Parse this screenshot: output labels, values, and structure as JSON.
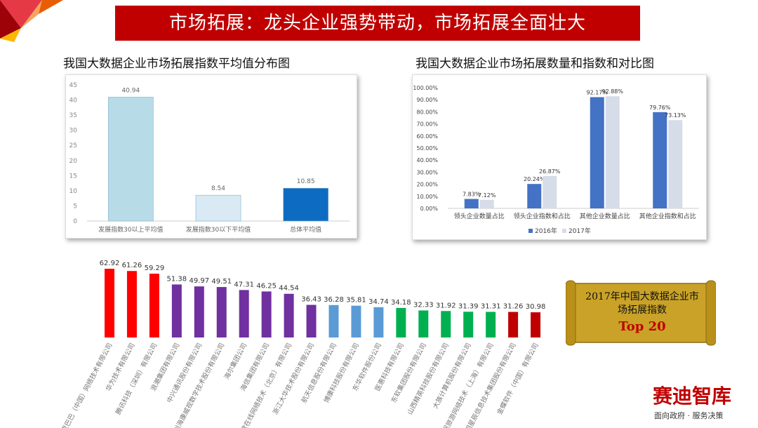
{
  "slide": {
    "title": "市场拓展：龙头企业强势带动，市场拓展全面壮大",
    "accent": "#c00000"
  },
  "chart_data": [
    {
      "type": "bar",
      "title": "我国大数据企业市场拓展指数平均值分布图",
      "categories": [
        "发展指数30以上平均值",
        "发展指数30以下平均值",
        "总体平均值"
      ],
      "values": [
        40.94,
        8.54,
        10.85
      ],
      "value_labels": [
        "40.94",
        "8.54",
        "10.85"
      ],
      "colors": [
        "#b8dbe8",
        "#d9eaf5",
        "#0e6bc2"
      ],
      "ylim": [
        0,
        45
      ],
      "yticks": [
        "0",
        "5",
        "10",
        "15",
        "20",
        "25",
        "30",
        "35",
        "40",
        "45"
      ],
      "grid": false
    },
    {
      "type": "bar",
      "title": "我国大数据企业市场拓展数量和指数和对比图",
      "categories": [
        "领头企业数量占比",
        "领头企业指数和占比",
        "其他企业数量占比",
        "其他企业指数和占比"
      ],
      "series": [
        {
          "name": "2016年",
          "values": [
            7.83,
            20.24,
            92.17,
            79.76
          ],
          "labels": [
            "7.83%",
            "20.24%",
            "92.17%",
            "79.76%"
          ],
          "color": "#4472c4"
        },
        {
          "name": "2017年",
          "values": [
            7.12,
            26.87,
            92.88,
            73.13
          ],
          "labels": [
            "7.12%",
            "26.87%",
            "92.88%",
            "73.13%"
          ],
          "color": "#d6dce8"
        }
      ],
      "ylim": [
        0,
        100
      ],
      "yticks": [
        "0.00%",
        "10.00%",
        "20.00%",
        "30.00%",
        "40.00%",
        "50.00%",
        "60.00%",
        "70.00%",
        "80.00%",
        "90.00%",
        "100.00%"
      ],
      "legend": "bottom",
      "grid": false
    },
    {
      "type": "bar",
      "categories": [
        "阿里巴巴（中国）网络技术有限公司",
        "华为技术有限公司",
        "腾讯科技（深圳）有限公司",
        "浪潮集团有限公司",
        "中兴通讯股份有限公司",
        "杭州海康威视数字技术股份有限公司",
        "海尔集团公司",
        "海信集团有限公司",
        "百度在线网络技术（北京）有限公司",
        "浙江大华技术股份有限公司",
        "航天信息股份有限公司",
        "博康科技股份有限公司",
        "东华软件股份公司",
        "医惠科技有限公司",
        "东软集团股份有限公司",
        "山西精英科技股份有限公司",
        "大族计算机股份有限公司",
        "携程旅游网络技术（上海）有限公司",
        "启明星辰信息技术集团股份有限公司",
        "金蝶软件（中国）有限公司"
      ],
      "values": [
        62.92,
        61.26,
        59.29,
        51.38,
        49.97,
        49.51,
        47.31,
        46.25,
        44.54,
        36.43,
        36.28,
        35.81,
        34.74,
        34.18,
        32.33,
        31.92,
        31.39,
        31.31,
        31.26,
        30.98
      ],
      "value_labels": [
        "62.92",
        "61.26",
        "59.29",
        "51.38",
        "49.97",
        "49.51",
        "47.31",
        "46.25",
        "44.54",
        "36.43",
        "36.28",
        "35.81",
        "34.74",
        "34.18",
        "32.33",
        "31.92",
        "31.39",
        "31.31",
        "31.26",
        "30.98"
      ],
      "colors": [
        "#ff0000",
        "#ff0000",
        "#ff0000",
        "#7030a0",
        "#7030a0",
        "#7030a0",
        "#7030a0",
        "#7030a0",
        "#7030a0",
        "#7030a0",
        "#5b9bd5",
        "#5b9bd5",
        "#5b9bd5",
        "#00b050",
        "#00b050",
        "#00b050",
        "#00b050",
        "#00b050",
        "#c00000",
        "#c00000"
      ],
      "grid": false
    }
  ],
  "scroll": {
    "line1": "2017年中国大数据企业市",
    "line2": "场拓展指数",
    "line3": "Top 20"
  },
  "logo": {
    "name": "赛迪智库",
    "slogan": "面向政府 · 服务决策"
  }
}
